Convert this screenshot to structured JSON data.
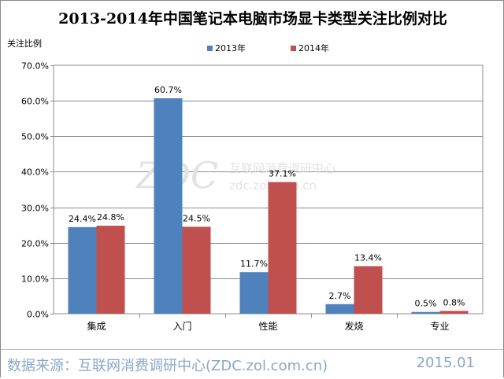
{
  "chart_data": {
    "type": "bar",
    "title": "2013-2014年中国笔记本电脑市场显卡类型关注比例对比",
    "ylabel": "关注比例",
    "xlabel": "",
    "categories": [
      "集成",
      "入门",
      "性能",
      "发烧",
      "专业"
    ],
    "series": [
      {
        "name": "2013年",
        "values": [
          24.4,
          60.7,
          11.7,
          2.7,
          0.5
        ],
        "color": "#4f81bd"
      },
      {
        "name": "2014年",
        "values": [
          24.8,
          24.5,
          37.1,
          13.4,
          0.8
        ],
        "color": "#c0504d"
      }
    ],
    "ylim": [
      0,
      70
    ],
    "ytick_step": 10,
    "ytick_labels": [
      "0.0%",
      "10.0%",
      "20.0%",
      "30.0%",
      "40.0%",
      "50.0%",
      "60.0%",
      "70.0%"
    ],
    "data_labels": [
      [
        "24.4%",
        "60.7%",
        "11.7%",
        "2.7%",
        "0.5%"
      ],
      [
        "24.8%",
        "24.5%",
        "37.1%",
        "13.4%",
        "0.8%"
      ]
    ],
    "grid": true,
    "legend": "top-center",
    "watermark": "ZDC 互联网消费调研中心 zdc.zol.com.cn"
  },
  "footer": {
    "source": "数据来源：互联网消费调研中心(ZDC.zol.com.cn)",
    "date": "2015.01"
  }
}
